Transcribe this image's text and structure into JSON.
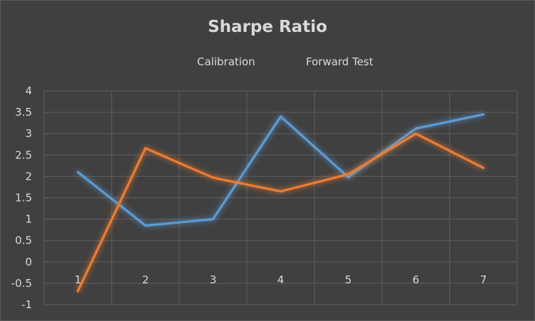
{
  "chart_data": {
    "type": "line",
    "title": "Sharpe Ratio",
    "xlabel": "",
    "ylabel": "",
    "categories": [
      "1",
      "2",
      "3",
      "4",
      "5",
      "6",
      "7"
    ],
    "y_ticks": [
      "4",
      "3.5",
      "3",
      "2.5",
      "2",
      "1.5",
      "1",
      "0.5",
      "0",
      "-0.5",
      "-1"
    ],
    "ylim": [
      -1,
      4
    ],
    "grid": true,
    "legend_position": "top",
    "series": [
      {
        "name": "Calibration",
        "color": "#5b9bd5",
        "values": [
          2.1,
          0.85,
          1.0,
          3.4,
          1.98,
          3.12,
          3.45
        ]
      },
      {
        "name": "Forward Test",
        "color": "#ed7d31",
        "values": [
          -0.68,
          2.66,
          1.97,
          1.65,
          2.05,
          3.0,
          2.2
        ]
      }
    ]
  }
}
